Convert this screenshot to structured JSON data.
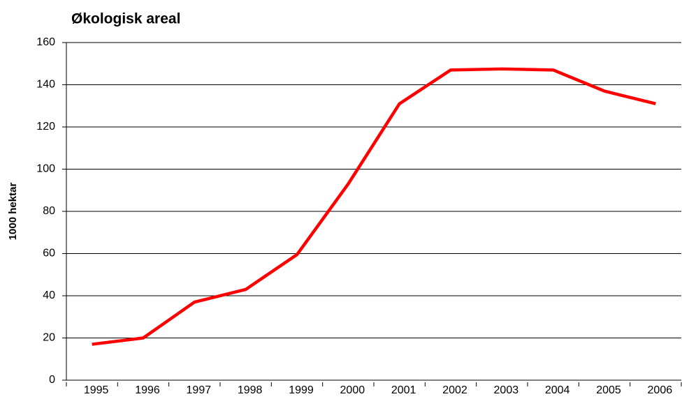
{
  "chart_data": {
    "type": "line",
    "title": "Økologisk areal",
    "y_label": "1000 hektar",
    "categories": [
      "1995",
      "1996",
      "1997",
      "1998",
      "1999",
      "2000",
      "2001",
      "2002",
      "2003",
      "2004",
      "2005",
      "2006"
    ],
    "series": [
      {
        "name": "Økologisk areal",
        "color": "#ff0000",
        "values": [
          17,
          20,
          37,
          43,
          59.5,
          93,
          131,
          147,
          147.5,
          147,
          137,
          131
        ]
      }
    ],
    "ylim": [
      0,
      160
    ],
    "yticks": [
      0,
      20,
      40,
      60,
      80,
      100,
      120,
      140,
      160
    ],
    "grid": true
  }
}
